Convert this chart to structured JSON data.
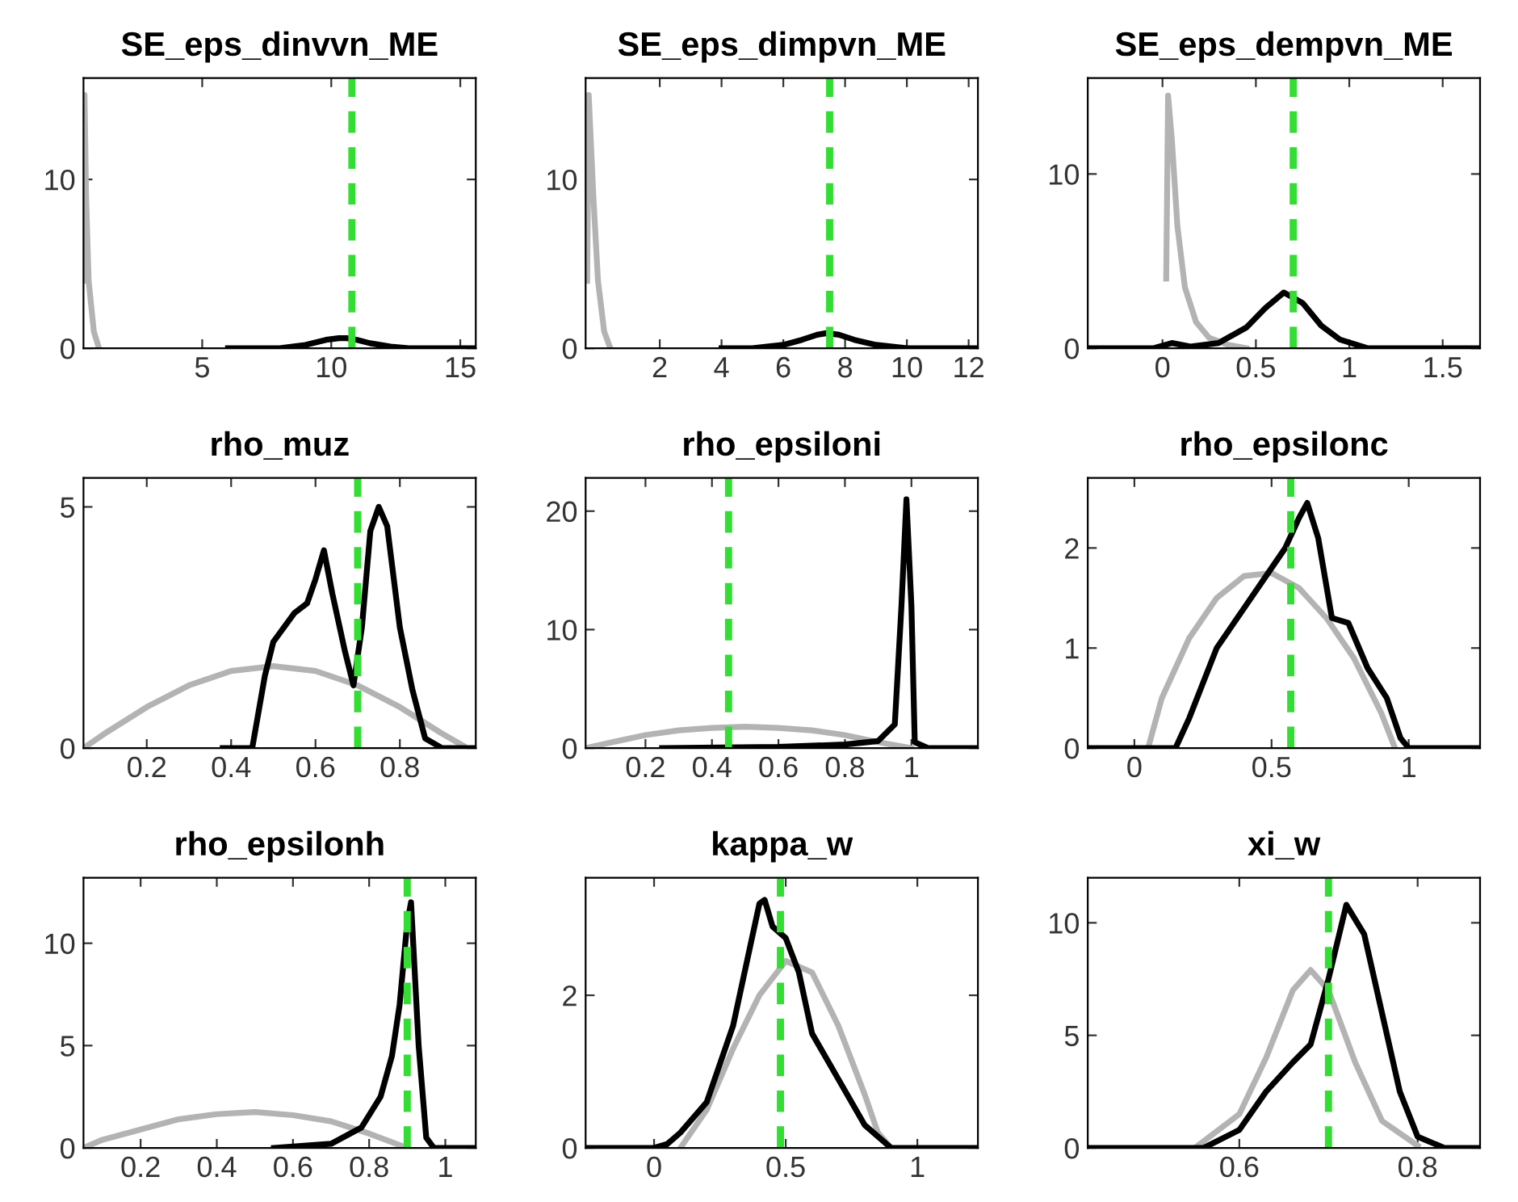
{
  "chart_data": [
    {
      "type": "line",
      "title": "SE_eps_dinvvn_ME",
      "xlim": [
        0.4,
        15.6
      ],
      "xticks": [
        5,
        10,
        15
      ],
      "ylim": [
        0,
        16
      ],
      "yticks": [
        0,
        10
      ],
      "grid": false,
      "series": [
        {
          "color": "#b3b3b3",
          "x": [
            0.42,
            0.44,
            0.46,
            0.5,
            0.6,
            0.8,
            1.0
          ],
          "values": [
            4,
            15,
            13,
            9,
            4,
            1,
            0
          ]
        },
        {
          "color": "#000000",
          "x": [
            6,
            8,
            9,
            9.8,
            10.3,
            10.6,
            11,
            11.5,
            12.3,
            13,
            15.6
          ],
          "values": [
            0,
            0,
            0.2,
            0.5,
            0.6,
            0.6,
            0.5,
            0.3,
            0.1,
            0,
            0
          ]
        }
      ],
      "ref_lines": [
        {
          "axis": "x",
          "value": 10.8,
          "color": "#33dd33",
          "line_style": "dashed"
        }
      ]
    },
    {
      "type": "line",
      "title": "SE_eps_dimpvn_ME",
      "xlim": [
        -0.4,
        12.3
      ],
      "xticks": [
        2,
        4,
        6,
        8,
        10,
        12
      ],
      "ylim": [
        0,
        16
      ],
      "yticks": [
        0,
        10
      ],
      "grid": false,
      "series": [
        {
          "color": "#b3b3b3",
          "x": [
            -0.35,
            -0.3,
            -0.25,
            -0.15,
            0,
            0.2,
            0.4
          ],
          "values": [
            4,
            15,
            13,
            9,
            4,
            1,
            0
          ]
        },
        {
          "color": "#000000",
          "x": [
            4,
            5,
            6,
            6.6,
            7.1,
            7.4,
            7.8,
            8.3,
            9,
            10,
            12.3
          ],
          "values": [
            0,
            0,
            0.2,
            0.5,
            0.8,
            0.9,
            0.8,
            0.5,
            0.2,
            0,
            0
          ]
        }
      ],
      "ref_lines": [
        {
          "axis": "x",
          "value": 7.5,
          "color": "#33dd33",
          "line_style": "dashed"
        }
      ]
    },
    {
      "type": "line",
      "title": "SE_eps_dempvn_ME",
      "xlim": [
        -0.4,
        1.7
      ],
      "xticks": [
        0,
        0.5,
        1,
        1.5
      ],
      "ylim": [
        0,
        15.5
      ],
      "yticks": [
        0,
        10
      ],
      "grid": false,
      "series": [
        {
          "color": "#b3b3b3",
          "x": [
            0.02,
            0.03,
            0.05,
            0.08,
            0.12,
            0.18,
            0.25,
            0.35,
            0.45
          ],
          "values": [
            4,
            14.5,
            12,
            7,
            3.5,
            1.5,
            0.6,
            0.2,
            0
          ]
        },
        {
          "color": "#000000",
          "x": [
            -0.4,
            -0.05,
            0.05,
            0.15,
            0.3,
            0.45,
            0.55,
            0.65,
            0.75,
            0.85,
            0.95,
            1.1,
            1.7
          ],
          "values": [
            0,
            0,
            0.3,
            0.1,
            0.3,
            1.2,
            2.3,
            3.2,
            2.6,
            1.3,
            0.5,
            0,
            0
          ]
        }
      ],
      "ref_lines": [
        {
          "axis": "x",
          "value": 0.7,
          "color": "#33dd33",
          "line_style": "dashed"
        }
      ]
    },
    {
      "type": "line",
      "title": "rho_muz",
      "xlim": [
        0.05,
        0.98
      ],
      "xticks": [
        0.2,
        0.4,
        0.6,
        0.8
      ],
      "ylim": [
        0,
        5.6
      ],
      "yticks": [
        0,
        5
      ],
      "grid": false,
      "series": [
        {
          "color": "#b3b3b3",
          "x": [
            0.05,
            0.1,
            0.2,
            0.3,
            0.4,
            0.5,
            0.6,
            0.7,
            0.8,
            0.9,
            0.95
          ],
          "values": [
            0,
            0.3,
            0.85,
            1.3,
            1.6,
            1.7,
            1.6,
            1.3,
            0.85,
            0.3,
            0.05
          ]
        },
        {
          "color": "#000000",
          "x": [
            0.38,
            0.45,
            0.48,
            0.5,
            0.55,
            0.58,
            0.6,
            0.62,
            0.64,
            0.67,
            0.69,
            0.71,
            0.73,
            0.75,
            0.77,
            0.8,
            0.83,
            0.86,
            0.9,
            0.98
          ],
          "values": [
            0,
            0,
            1.5,
            2.2,
            2.8,
            3.0,
            3.5,
            4.1,
            3.2,
            2.0,
            1.3,
            2.5,
            4.5,
            5.0,
            4.6,
            2.5,
            1.2,
            0.2,
            0,
            0
          ]
        }
      ],
      "ref_lines": [
        {
          "axis": "x",
          "value": 0.7,
          "color": "#33dd33",
          "line_style": "dashed"
        }
      ]
    },
    {
      "type": "line",
      "title": "rho_epsiloni",
      "xlim": [
        0.02,
        1.2
      ],
      "xticks": [
        0.2,
        0.4,
        0.6,
        0.8,
        1
      ],
      "ylim": [
        0,
        22.8
      ],
      "yticks": [
        0,
        10,
        20
      ],
      "grid": false,
      "series": [
        {
          "color": "#b3b3b3",
          "x": [
            0.02,
            0.1,
            0.2,
            0.3,
            0.4,
            0.5,
            0.6,
            0.7,
            0.8,
            0.9,
            1.0
          ],
          "values": [
            0,
            0.5,
            1.1,
            1.5,
            1.7,
            1.8,
            1.7,
            1.5,
            1.1,
            0.5,
            0
          ]
        },
        {
          "color": "#000000",
          "x": [
            0.25,
            0.6,
            0.8,
            0.9,
            0.95,
            0.97,
            0.985,
            1.0,
            1.01,
            1.05,
            1.2
          ],
          "values": [
            0,
            0.1,
            0.3,
            0.6,
            2,
            12,
            21,
            12,
            0.5,
            0,
            0
          ]
        }
      ],
      "ref_lines": [
        {
          "axis": "x",
          "value": 0.45,
          "color": "#33dd33",
          "line_style": "dashed"
        }
      ]
    },
    {
      "type": "line",
      "title": "rho_epsilonc",
      "xlim": [
        -0.17,
        1.26
      ],
      "xticks": [
        0,
        0.5,
        1
      ],
      "ylim": [
        0,
        2.7
      ],
      "yticks": [
        0,
        1,
        2
      ],
      "grid": false,
      "series": [
        {
          "color": "#b3b3b3",
          "x": [
            0.05,
            0.1,
            0.2,
            0.3,
            0.4,
            0.5,
            0.6,
            0.7,
            0.8,
            0.9,
            0.95
          ],
          "values": [
            0,
            0.5,
            1.1,
            1.5,
            1.72,
            1.75,
            1.6,
            1.3,
            0.9,
            0.35,
            0
          ]
        },
        {
          "color": "#000000",
          "x": [
            -0.17,
            0.15,
            0.2,
            0.3,
            0.4,
            0.5,
            0.55,
            0.6,
            0.63,
            0.67,
            0.72,
            0.78,
            0.85,
            0.92,
            0.97,
            1.0,
            1.26
          ],
          "values": [
            0,
            0,
            0.3,
            1.0,
            1.4,
            1.8,
            2.0,
            2.3,
            2.45,
            2.1,
            1.3,
            1.25,
            0.8,
            0.5,
            0.1,
            0,
            0
          ]
        }
      ],
      "ref_lines": [
        {
          "axis": "x",
          "value": 0.57,
          "color": "#33dd33",
          "line_style": "dashed"
        }
      ]
    },
    {
      "type": "line",
      "title": "rho_epsilonh",
      "xlim": [
        0.05,
        1.08
      ],
      "xticks": [
        0.2,
        0.4,
        0.6,
        0.8,
        1
      ],
      "ylim": [
        0,
        13.2
      ],
      "yticks": [
        0,
        5,
        10
      ],
      "grid": false,
      "series": [
        {
          "color": "#b3b3b3",
          "x": [
            0.05,
            0.1,
            0.2,
            0.3,
            0.4,
            0.5,
            0.6,
            0.7,
            0.8,
            0.9
          ],
          "values": [
            0,
            0.4,
            0.9,
            1.4,
            1.65,
            1.75,
            1.6,
            1.3,
            0.7,
            0
          ]
        },
        {
          "color": "#000000",
          "x": [
            0.55,
            0.7,
            0.78,
            0.83,
            0.86,
            0.88,
            0.9,
            0.91,
            0.93,
            0.95,
            0.97,
            1.08
          ],
          "values": [
            0,
            0.2,
            1.0,
            2.5,
            4.5,
            7,
            11,
            12,
            5,
            0.5,
            0,
            0
          ]
        }
      ],
      "ref_lines": [
        {
          "axis": "x",
          "value": 0.9,
          "color": "#33dd33",
          "line_style": "dashed"
        }
      ]
    },
    {
      "type": "line",
      "title": "kappa_w",
      "xlim": [
        -0.26,
        1.23
      ],
      "xticks": [
        0,
        0.5,
        1
      ],
      "ylim": [
        0,
        3.54
      ],
      "yticks": [
        0,
        2
      ],
      "grid": false,
      "series": [
        {
          "color": "#b3b3b3",
          "x": [
            0.1,
            0.2,
            0.3,
            0.4,
            0.5,
            0.6,
            0.7,
            0.8,
            0.85,
            0.9
          ],
          "values": [
            0,
            0.5,
            1.3,
            2.0,
            2.45,
            2.3,
            1.6,
            0.7,
            0.2,
            0
          ]
        },
        {
          "color": "#000000",
          "x": [
            -0.26,
            0,
            0.05,
            0.1,
            0.2,
            0.3,
            0.35,
            0.4,
            0.42,
            0.45,
            0.5,
            0.55,
            0.6,
            0.7,
            0.8,
            0.9,
            1.23
          ],
          "values": [
            0,
            0,
            0.05,
            0.2,
            0.6,
            1.6,
            2.4,
            3.2,
            3.25,
            2.9,
            2.75,
            2.3,
            1.5,
            0.9,
            0.3,
            0,
            0
          ]
        }
      ],
      "ref_lines": [
        {
          "axis": "x",
          "value": 0.48,
          "color": "#33dd33",
          "line_style": "dashed"
        }
      ]
    },
    {
      "type": "line",
      "title": "xi_w",
      "xlim": [
        0.43,
        0.87
      ],
      "xticks": [
        0.6,
        0.8
      ],
      "ylim": [
        0,
        12
      ],
      "yticks": [
        0,
        5,
        10
      ],
      "grid": false,
      "series": [
        {
          "color": "#b3b3b3",
          "x": [
            0.55,
            0.6,
            0.63,
            0.66,
            0.68,
            0.7,
            0.73,
            0.76,
            0.8
          ],
          "values": [
            0,
            1.5,
            4,
            7,
            7.9,
            7,
            3.8,
            1.2,
            0.1
          ]
        },
        {
          "color": "#000000",
          "x": [
            0.43,
            0.56,
            0.6,
            0.63,
            0.66,
            0.68,
            0.7,
            0.72,
            0.74,
            0.76,
            0.78,
            0.8,
            0.83,
            0.87
          ],
          "values": [
            0,
            0,
            0.8,
            2.5,
            3.8,
            4.6,
            7.5,
            10.8,
            9.5,
            6,
            2.5,
            0.5,
            0,
            0
          ]
        }
      ],
      "ref_lines": [
        {
          "axis": "x",
          "value": 0.7,
          "color": "#33dd33",
          "line_style": "dashed"
        }
      ]
    }
  ]
}
